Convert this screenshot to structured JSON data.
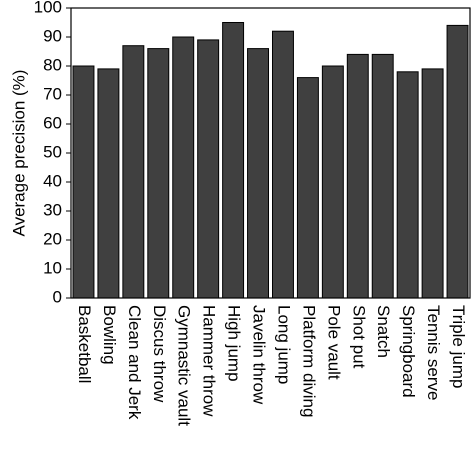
{
  "chart_data": {
    "type": "bar",
    "y_label": "Average precision (%)",
    "categories": [
      "Basketball",
      "Bowling",
      "Clean and Jerk",
      "Discus throw",
      "Gymnastic vault",
      "Hammer throw",
      "High jump",
      "Javelin throw",
      "Long jump",
      "Platform diving",
      "Pole vault",
      "Shot put",
      "Snatch",
      "Springboard",
      "Tennis serve",
      "Triple jump"
    ],
    "values": [
      80,
      79,
      87,
      86,
      90,
      89,
      95,
      86,
      92,
      76,
      80,
      84,
      84,
      78,
      79,
      94
    ],
    "color": "#404040",
    "ylim": [
      0,
      100
    ],
    "yticks": [
      0,
      10,
      20,
      30,
      40,
      50,
      60,
      70,
      80,
      90,
      100
    ]
  }
}
